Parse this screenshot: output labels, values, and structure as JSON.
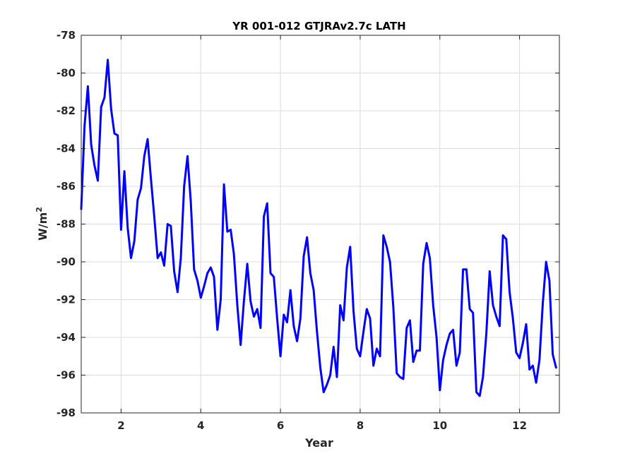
{
  "chart_data": {
    "type": "line",
    "title": "YR 001-012 GTJRAv2.7c LATH",
    "xlabel": "Year",
    "ylabel_base": "W/m",
    "ylabel_sup": "2",
    "xlim": [
      1,
      13
    ],
    "ylim": [
      -98,
      -78
    ],
    "xticks": [
      2,
      4,
      6,
      8,
      10,
      12
    ],
    "yticks": [
      -98,
      -96,
      -94,
      -92,
      -90,
      -88,
      -86,
      -84,
      -82,
      -80,
      -78
    ],
    "grid": true,
    "colors": {
      "line": "#0000ff",
      "grid": "#dcdcdc",
      "axis": "#262626"
    },
    "series": [
      {
        "x": [
          1.0,
          1.083,
          1.167,
          1.25,
          1.333,
          1.417,
          1.5,
          1.583,
          1.667,
          1.75,
          1.833,
          1.917,
          2.0,
          2.083,
          2.167,
          2.25,
          2.333,
          2.417,
          2.5,
          2.583,
          2.667,
          2.75,
          2.833,
          2.917,
          3.0,
          3.083,
          3.167,
          3.25,
          3.333,
          3.417,
          3.5,
          3.583,
          3.667,
          3.75,
          3.833,
          3.917,
          4.0,
          4.083,
          4.167,
          4.25,
          4.333,
          4.417,
          4.5,
          4.583,
          4.667,
          4.75,
          4.833,
          4.917,
          5.0,
          5.083,
          5.167,
          5.25,
          5.333,
          5.417,
          5.5,
          5.583,
          5.667,
          5.75,
          5.833,
          5.917,
          6.0,
          6.083,
          6.167,
          6.25,
          6.333,
          6.417,
          6.5,
          6.583,
          6.667,
          6.75,
          6.833,
          6.917,
          7.0,
          7.083,
          7.167,
          7.25,
          7.333,
          7.417,
          7.5,
          7.583,
          7.667,
          7.75,
          7.833,
          7.917,
          8.0,
          8.083,
          8.167,
          8.25,
          8.333,
          8.417,
          8.5,
          8.583,
          8.667,
          8.75,
          8.833,
          8.917,
          9.0,
          9.083,
          9.167,
          9.25,
          9.333,
          9.417,
          9.5,
          9.583,
          9.667,
          9.75,
          9.833,
          9.917,
          10.0,
          10.083,
          10.167,
          10.25,
          10.333,
          10.417,
          10.5,
          10.583,
          10.667,
          10.75,
          10.833,
          10.917,
          11.0,
          11.083,
          11.167,
          11.25,
          11.333,
          11.417,
          11.5,
          11.583,
          11.667,
          11.75,
          11.833,
          11.917,
          12.0,
          12.083,
          12.167,
          12.25,
          12.333,
          12.417,
          12.5,
          12.583,
          12.667,
          12.75,
          12.833,
          12.917
        ],
        "y": [
          -87.2,
          -82.8,
          -80.7,
          -83.8,
          -84.9,
          -85.7,
          -81.8,
          -81.3,
          -79.3,
          -81.9,
          -83.2,
          -83.3,
          -88.3,
          -85.2,
          -88.2,
          -89.8,
          -88.9,
          -86.7,
          -86.1,
          -84.4,
          -83.5,
          -85.6,
          -87.6,
          -89.8,
          -89.5,
          -90.2,
          -88.0,
          -88.1,
          -90.5,
          -91.6,
          -89.8,
          -86.0,
          -84.4,
          -86.8,
          -90.4,
          -91.0,
          -91.9,
          -91.3,
          -90.6,
          -90.3,
          -90.8,
          -93.6,
          -92.0,
          -85.9,
          -88.4,
          -88.3,
          -89.6,
          -92.3,
          -94.4,
          -92.1,
          -90.1,
          -92.1,
          -92.9,
          -92.5,
          -93.5,
          -87.6,
          -86.9,
          -90.6,
          -90.8,
          -93.0,
          -95.0,
          -92.8,
          -93.2,
          -91.5,
          -93.4,
          -94.2,
          -93.0,
          -89.7,
          -88.7,
          -90.6,
          -91.5,
          -93.7,
          -95.6,
          -96.9,
          -96.5,
          -96.0,
          -94.5,
          -96.1,
          -92.3,
          -93.1,
          -90.3,
          -89.2,
          -92.6,
          -94.6,
          -95.0,
          -93.7,
          -92.5,
          -93.0,
          -95.5,
          -94.6,
          -95.0,
          -88.6,
          -89.2,
          -90.0,
          -92.4,
          -95.9,
          -96.1,
          -96.2,
          -93.5,
          -93.1,
          -95.3,
          -94.7,
          -94.7,
          -90.1,
          -89.0,
          -89.8,
          -92.3,
          -94.0,
          -96.8,
          -95.2,
          -94.4,
          -93.8,
          -93.6,
          -95.5,
          -94.8,
          -90.4,
          -90.4,
          -92.5,
          -92.7,
          -96.9,
          -97.1,
          -96.1,
          -93.8,
          -90.5,
          -92.3,
          -92.9,
          -93.4,
          -88.6,
          -88.8,
          -91.6,
          -93.0,
          -94.8,
          -95.1,
          -94.3,
          -93.3,
          -95.7,
          -95.5,
          -96.4,
          -95.2,
          -92.2,
          -90.0,
          -91.0,
          -94.9,
          -95.6
        ]
      }
    ]
  }
}
